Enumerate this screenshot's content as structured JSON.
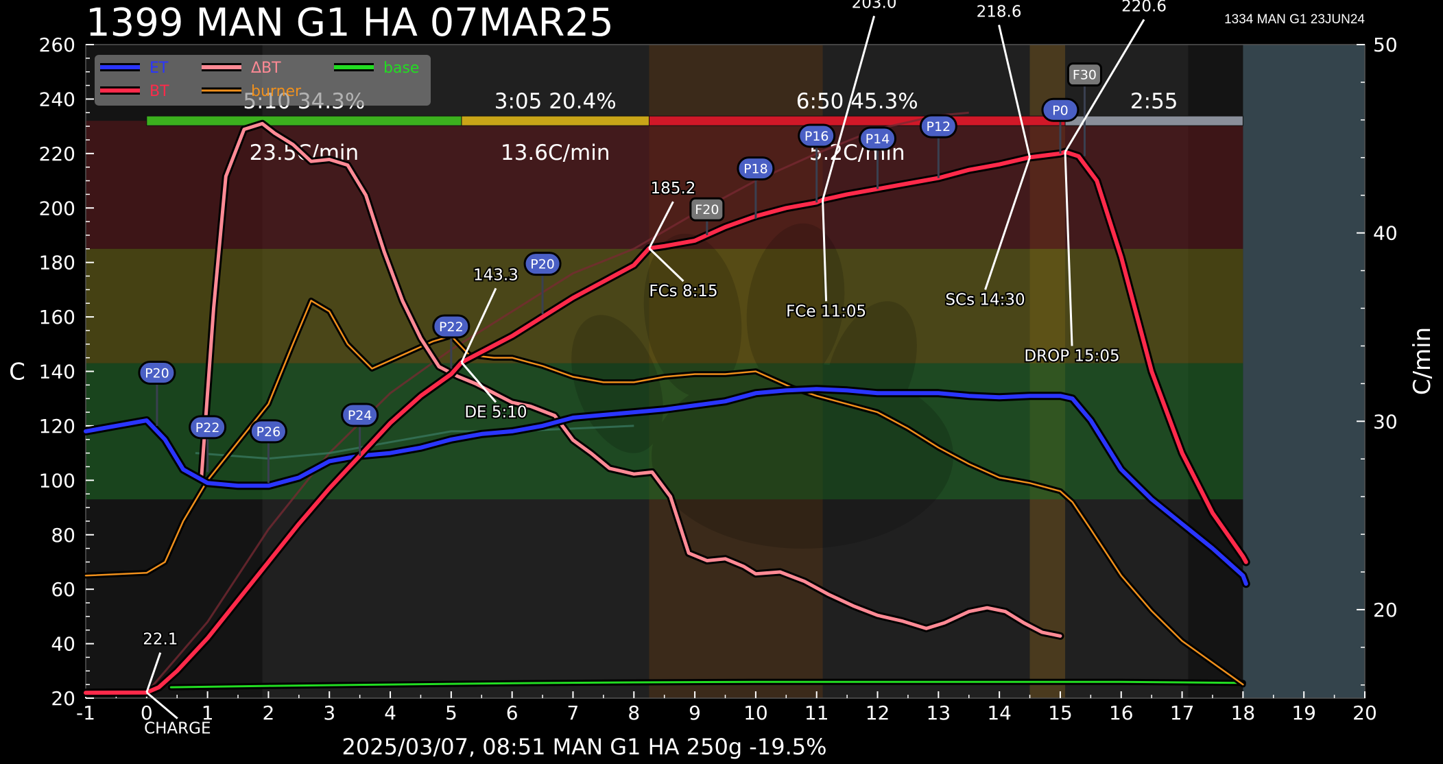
{
  "title": "1399 MAN G1 HA 07MAR25",
  "background_profile": "1334 MAN G1 23JUN24",
  "footer": "2025/03/07, 08:51   MAN G1 HA   250g   -19.5%",
  "chart_data": {
    "type": "line",
    "x_range": [
      -1,
      20
    ],
    "x_ticks": [
      "-1",
      "0",
      "1",
      "2",
      "3",
      "4",
      "5",
      "6",
      "7",
      "8",
      "9",
      "10",
      "11",
      "12",
      "13",
      "14",
      "15",
      "16",
      "17",
      "18",
      "19",
      "20"
    ],
    "y_left": {
      "label": "C",
      "range": [
        20,
        260
      ],
      "ticks": [
        "20",
        "40",
        "60",
        "80",
        "100",
        "120",
        "140",
        "160",
        "180",
        "200",
        "220",
        "240",
        "260"
      ]
    },
    "y_right": {
      "label": "C/min",
      "range": [
        15.3,
        50
      ],
      "ticks": [
        "20",
        "30",
        "40",
        "50"
      ]
    },
    "legend": {
      "placement": "top-left",
      "entries": [
        {
          "label": "ET",
          "color": "#2a35ff"
        },
        {
          "label": "BT",
          "color": "#ff2a4a"
        },
        {
          "label": "ΔBT",
          "color": "#ff8a95"
        },
        {
          "label": "burner",
          "color": "#f0901c"
        },
        {
          "label": "base",
          "color": "#22dd22"
        }
      ]
    },
    "zones": [
      {
        "from": 93,
        "to": 143,
        "color": "#1d6b25"
      },
      {
        "from": 143,
        "to": 185,
        "color": "#6e6612"
      },
      {
        "from": 185,
        "to": 232,
        "color": "#5e1519"
      }
    ],
    "phases_bar": [
      {
        "from": 0,
        "to": 5.17,
        "color": "#3cb01e",
        "label": "5:10  34.3%",
        "ror": "23.5C/min"
      },
      {
        "from": 5.17,
        "to": 8.25,
        "color": "#c9a518",
        "label": "3:05  20.4%",
        "ror": "13.6C/min"
      },
      {
        "from": 8.25,
        "to": 15.08,
        "color": "#d01828",
        "label": "6:50  45.3%",
        "ror": "5.2C/min"
      },
      {
        "from": 15.08,
        "to": 18,
        "color": "#8a8f9a",
        "label": "2:55",
        "ror": ""
      }
    ],
    "series": [
      {
        "name": "ET",
        "color": "#2a35ff",
        "axis": "left",
        "points": [
          [
            -1,
            118
          ],
          [
            -0.5,
            120
          ],
          [
            0,
            122
          ],
          [
            0.3,
            115
          ],
          [
            0.6,
            104
          ],
          [
            1,
            99
          ],
          [
            1.5,
            98
          ],
          [
            2,
            98
          ],
          [
            2.5,
            101
          ],
          [
            3,
            107
          ],
          [
            3.5,
            109
          ],
          [
            4,
            110
          ],
          [
            4.5,
            112
          ],
          [
            5,
            115
          ],
          [
            5.5,
            117
          ],
          [
            6,
            118
          ],
          [
            6.5,
            120
          ],
          [
            7,
            123
          ],
          [
            7.5,
            124
          ],
          [
            8,
            125
          ],
          [
            8.5,
            126
          ],
          [
            9,
            127.5
          ],
          [
            9.5,
            129
          ],
          [
            10,
            132
          ],
          [
            10.5,
            133
          ],
          [
            11,
            133.5
          ],
          [
            11.5,
            133
          ],
          [
            12,
            132
          ],
          [
            12.5,
            132
          ],
          [
            13,
            132
          ],
          [
            13.5,
            131
          ],
          [
            14,
            130.5
          ],
          [
            14.5,
            131
          ],
          [
            15,
            131
          ],
          [
            15.2,
            130
          ],
          [
            15.5,
            122
          ],
          [
            16,
            104
          ],
          [
            16.5,
            93
          ],
          [
            17,
            84
          ],
          [
            17.5,
            75
          ],
          [
            18,
            65
          ],
          [
            18.05,
            62
          ]
        ]
      },
      {
        "name": "BT",
        "color": "#ff2a4a",
        "axis": "left",
        "points": [
          [
            -1,
            22
          ],
          [
            0,
            22.1
          ],
          [
            0.2,
            24
          ],
          [
            0.5,
            30
          ],
          [
            1,
            42
          ],
          [
            1.5,
            56
          ],
          [
            2,
            70
          ],
          [
            2.5,
            84
          ],
          [
            3,
            97
          ],
          [
            3.5,
            109
          ],
          [
            4,
            121
          ],
          [
            4.5,
            131
          ],
          [
            5,
            139
          ],
          [
            5.17,
            143.3
          ],
          [
            6,
            153
          ],
          [
            6.5,
            160
          ],
          [
            7,
            167
          ],
          [
            7.5,
            173
          ],
          [
            8,
            179
          ],
          [
            8.25,
            185.2
          ],
          [
            8.5,
            186
          ],
          [
            9,
            188
          ],
          [
            9.5,
            193
          ],
          [
            10,
            197
          ],
          [
            10.5,
            200
          ],
          [
            11,
            202
          ],
          [
            11.1,
            203
          ],
          [
            11.5,
            205
          ],
          [
            12,
            207
          ],
          [
            12.5,
            209
          ],
          [
            13,
            211
          ],
          [
            13.5,
            214
          ],
          [
            14,
            216
          ],
          [
            14.5,
            218.6
          ],
          [
            15,
            220
          ],
          [
            15.08,
            220.6
          ],
          [
            15.3,
            219
          ],
          [
            15.6,
            210
          ],
          [
            16,
            182
          ],
          [
            16.5,
            140
          ],
          [
            17,
            110
          ],
          [
            17.5,
            88
          ],
          [
            18,
            72
          ],
          [
            18.05,
            70
          ]
        ]
      },
      {
        "name": "ΔBT",
        "color": "#ff8a95",
        "axis": "right",
        "points": [
          [
            0.9,
            27
          ],
          [
            1.1,
            36
          ],
          [
            1.3,
            43
          ],
          [
            1.6,
            45.5
          ],
          [
            1.9,
            45.8
          ],
          [
            2.1,
            45.3
          ],
          [
            2.4,
            44.7
          ],
          [
            2.7,
            43.8
          ],
          [
            3,
            43.9
          ],
          [
            3.3,
            43.6
          ],
          [
            3.6,
            42
          ],
          [
            3.9,
            39
          ],
          [
            4.2,
            36.4
          ],
          [
            4.5,
            34.4
          ],
          [
            4.8,
            32.9
          ],
          [
            5.1,
            32.4
          ],
          [
            5.4,
            32
          ],
          [
            5.7,
            31.5
          ],
          [
            6,
            31.0
          ],
          [
            6.3,
            30.8
          ],
          [
            6.7,
            30.3
          ],
          [
            7,
            29
          ],
          [
            7.3,
            28.3
          ],
          [
            7.6,
            27.5
          ],
          [
            8,
            27.2
          ],
          [
            8.3,
            27.3
          ],
          [
            8.6,
            26
          ],
          [
            8.9,
            23
          ],
          [
            9.2,
            22.6
          ],
          [
            9.5,
            22.7
          ],
          [
            9.8,
            22.3
          ],
          [
            10,
            21.9
          ],
          [
            10.4,
            22.0
          ],
          [
            10.8,
            21.5
          ],
          [
            11.2,
            20.8
          ],
          [
            11.6,
            20.2
          ],
          [
            12,
            19.7
          ],
          [
            12.4,
            19.4
          ],
          [
            12.8,
            19.0
          ],
          [
            13.1,
            19.3
          ],
          [
            13.5,
            19.9
          ],
          [
            13.8,
            20.1
          ],
          [
            14.1,
            19.9
          ],
          [
            14.4,
            19.3
          ],
          [
            14.7,
            18.8
          ],
          [
            15,
            18.6
          ]
        ]
      },
      {
        "name": "burner",
        "color": "#f0901c",
        "axis": "left",
        "points": [
          [
            -1,
            65
          ],
          [
            0,
            66
          ],
          [
            0.3,
            70
          ],
          [
            0.6,
            85
          ],
          [
            1,
            100
          ],
          [
            1.5,
            114
          ],
          [
            2,
            128
          ],
          [
            2.4,
            150
          ],
          [
            2.7,
            166
          ],
          [
            3,
            162
          ],
          [
            3.3,
            150
          ],
          [
            3.7,
            141
          ],
          [
            4,
            144
          ],
          [
            4.3,
            147
          ],
          [
            4.7,
            151
          ],
          [
            5,
            153
          ],
          [
            5.3,
            146
          ],
          [
            5.7,
            145
          ],
          [
            6,
            145
          ],
          [
            6.5,
            142
          ],
          [
            7,
            138
          ],
          [
            7.5,
            136
          ],
          [
            8,
            136
          ],
          [
            8.5,
            138
          ],
          [
            9,
            139
          ],
          [
            9.5,
            139
          ],
          [
            10,
            140
          ],
          [
            10.3,
            137
          ],
          [
            10.6,
            134
          ],
          [
            11,
            131
          ],
          [
            11.5,
            128
          ],
          [
            12,
            125
          ],
          [
            12.5,
            119
          ],
          [
            13,
            112
          ],
          [
            13.5,
            106
          ],
          [
            14,
            101
          ],
          [
            14.5,
            99
          ],
          [
            15,
            96
          ],
          [
            15.2,
            92
          ],
          [
            15.5,
            82
          ],
          [
            16,
            65
          ],
          [
            16.5,
            52
          ],
          [
            17,
            41
          ],
          [
            17.5,
            33
          ],
          [
            18,
            25
          ]
        ]
      },
      {
        "name": "base",
        "color": "#22dd22",
        "axis": "left",
        "points": [
          [
            0.4,
            24
          ],
          [
            2,
            24.5
          ],
          [
            4,
            25
          ],
          [
            6,
            25.5
          ],
          [
            8,
            25.8
          ],
          [
            10,
            26
          ],
          [
            12,
            26
          ],
          [
            14,
            26
          ],
          [
            16,
            26
          ],
          [
            17,
            25.8
          ],
          [
            18,
            25.6
          ]
        ]
      }
    ],
    "background_series": [
      {
        "color": "#7a2a33",
        "points": [
          [
            0,
            22
          ],
          [
            1,
            48
          ],
          [
            2,
            82
          ],
          [
            3,
            110
          ],
          [
            4,
            132
          ],
          [
            5,
            148
          ],
          [
            6,
            162
          ],
          [
            7,
            176
          ],
          [
            8,
            185
          ],
          [
            9,
            198
          ],
          [
            10,
            210
          ],
          [
            11,
            220
          ],
          [
            12,
            229
          ],
          [
            13,
            234
          ],
          [
            13.5,
            235
          ]
        ]
      },
      {
        "color": "#3a7a62",
        "points": [
          [
            0.8,
            110
          ],
          [
            2,
            108
          ],
          [
            3,
            110
          ],
          [
            4,
            114
          ],
          [
            5,
            118
          ],
          [
            6,
            118
          ],
          [
            7,
            119
          ],
          [
            8,
            120
          ]
        ]
      }
    ],
    "point_annotations": [
      {
        "x": 0,
        "y": 22.1,
        "value": "22.1",
        "label": "CHARGE"
      },
      {
        "x": 5.17,
        "y": 143.3,
        "value": "143.3",
        "label": "DE 5:10"
      },
      {
        "x": 8.25,
        "y": 185.2,
        "value": "185.2",
        "label": "FCs 8:15"
      },
      {
        "x": 11.1,
        "y": 203.0,
        "value": "203.0",
        "label": "FCe 11:05"
      },
      {
        "x": 14.5,
        "y": 218.6,
        "value": "218.6",
        "label": "SCs 14:30"
      },
      {
        "x": 15.08,
        "y": 220.6,
        "value": "220.6",
        "label": "DROP 15:05"
      }
    ],
    "events": [
      {
        "x": 0.17,
        "y": 120,
        "top": 139.5,
        "label": "P20",
        "kind": "power"
      },
      {
        "x": 1,
        "y": 103,
        "top": 119.5,
        "label": "P22",
        "kind": "power"
      },
      {
        "x": 2,
        "y": 99,
        "top": 118,
        "label": "P26",
        "kind": "power"
      },
      {
        "x": 3.5,
        "y": 109,
        "top": 124,
        "label": "P24",
        "kind": "power"
      },
      {
        "x": 5,
        "y": 141,
        "top": 156.5,
        "label": "P22",
        "kind": "power"
      },
      {
        "x": 6.5,
        "y": 161,
        "top": 179.5,
        "label": "P20",
        "kind": "power"
      },
      {
        "x": 9.2,
        "y": 190,
        "top": 199.5,
        "label": "F20",
        "kind": "fan"
      },
      {
        "x": 10,
        "y": 196,
        "top": 214.5,
        "label": "P18",
        "kind": "power"
      },
      {
        "x": 11,
        "y": 202,
        "top": 226.5,
        "label": "P16",
        "kind": "power"
      },
      {
        "x": 12,
        "y": 207,
        "top": 225.5,
        "label": "P14",
        "kind": "power"
      },
      {
        "x": 13,
        "y": 211,
        "top": 230,
        "label": "P12",
        "kind": "power"
      },
      {
        "x": 15,
        "y": 220,
        "top": 236,
        "label": "P0",
        "kind": "power"
      },
      {
        "x": 15.4,
        "y": 219,
        "top": 249,
        "label": "F30",
        "kind": "fan"
      }
    ]
  }
}
